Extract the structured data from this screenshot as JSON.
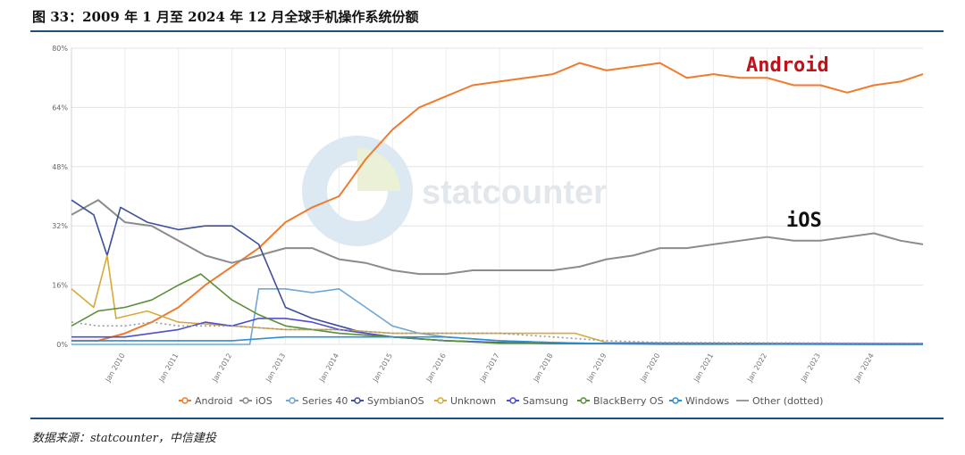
{
  "header": {
    "title": "图 33：2009 年 1 月至 2024 年 12 月全球手机操作系统份额"
  },
  "footer": {
    "source": "数据来源：statcounter，中信建投"
  },
  "watermark": "statcounter",
  "colors": {
    "rule": "#1f4e79",
    "Android": "#f07a2e",
    "iOS": "#8c8c8c",
    "Series 40": "#6fa8d6",
    "SymbianOS": "#3b4f9a",
    "Unknown": "#d9a93a",
    "Samsung": "#4d4fd0",
    "BlackBerry OS": "#5c8f3a",
    "Windows": "#2f8fd1",
    "Other (dotted)": "#9a9a9a",
    "annotation_android": "#c0121b",
    "annotation_ios": "#111111"
  },
  "chart_data": {
    "type": "line",
    "title": "",
    "xlabel": "",
    "ylabel": "",
    "ylim": [
      0,
      80
    ],
    "y_ticks": [
      "0%",
      "16%",
      "32%",
      "48%",
      "64%",
      "80%"
    ],
    "x_ticks": [
      "Jan 2010",
      "Jan 2011",
      "Jan 2012",
      "Jan 2013",
      "Jan 2014",
      "Jan 2015",
      "Jan 2016",
      "Jan 2017",
      "Jan 2018",
      "Jan 2019",
      "Jan 2020",
      "Jan 2021",
      "Jan 2022",
      "Jan 2023",
      "Jan 2024"
    ],
    "x_start": "2009-01",
    "x_end": "2024-12",
    "legend": [
      "Android",
      "iOS",
      "Series 40",
      "SymbianOS",
      "Unknown",
      "Samsung",
      "BlackBerry OS",
      "Windows",
      "Other (dotted)"
    ],
    "legend_position": "bottom",
    "grid": true,
    "annotations": [
      {
        "text": "Android",
        "series": "Android"
      },
      {
        "text": "iOS",
        "series": "iOS"
      }
    ],
    "series": [
      {
        "name": "Android",
        "x": [
          "2009-01",
          "2009-07",
          "2010-01",
          "2010-07",
          "2011-01",
          "2011-07",
          "2012-01",
          "2012-07",
          "2013-01",
          "2013-07",
          "2014-01",
          "2014-07",
          "2015-01",
          "2015-07",
          "2016-01",
          "2016-07",
          "2017-01",
          "2017-07",
          "2018-01",
          "2018-07",
          "2019-01",
          "2019-07",
          "2020-01",
          "2020-07",
          "2021-01",
          "2021-07",
          "2022-01",
          "2022-07",
          "2023-01",
          "2023-07",
          "2024-01",
          "2024-07",
          "2024-12"
        ],
        "values": [
          1,
          1,
          3,
          6,
          10,
          16,
          21,
          26,
          33,
          37,
          40,
          50,
          58,
          64,
          67,
          70,
          71,
          72,
          73,
          76,
          74,
          75,
          76,
          72,
          73,
          72,
          72,
          70,
          70,
          68,
          70,
          71,
          73
        ]
      },
      {
        "name": "iOS",
        "x": [
          "2009-01",
          "2009-07",
          "2010-01",
          "2010-07",
          "2011-01",
          "2011-07",
          "2012-01",
          "2012-07",
          "2013-01",
          "2013-07",
          "2014-01",
          "2014-07",
          "2015-01",
          "2015-07",
          "2016-01",
          "2016-07",
          "2017-01",
          "2017-07",
          "2018-01",
          "2018-07",
          "2019-01",
          "2019-07",
          "2020-01",
          "2020-07",
          "2021-01",
          "2021-07",
          "2022-01",
          "2022-07",
          "2023-01",
          "2023-07",
          "2024-01",
          "2024-07",
          "2024-12"
        ],
        "values": [
          35,
          39,
          33,
          32,
          28,
          24,
          22,
          24,
          26,
          26,
          23,
          22,
          20,
          19,
          19,
          20,
          20,
          20,
          20,
          21,
          23,
          24,
          26,
          26,
          27,
          28,
          29,
          28,
          28,
          29,
          30,
          28,
          27
        ]
      },
      {
        "name": "Series 40",
        "x": [
          "2009-01",
          "2011-01",
          "2012-01",
          "2012-05",
          "2012-07",
          "2013-01",
          "2013-07",
          "2014-01",
          "2014-07",
          "2015-01",
          "2015-07",
          "2016-01",
          "2016-07",
          "2017-01",
          "2018-01",
          "2019-01",
          "2020-01",
          "2024-12"
        ],
        "values": [
          0,
          0,
          0,
          0,
          15,
          15,
          14,
          15,
          10,
          5,
          3,
          2,
          1.5,
          1,
          0.5,
          0.2,
          0,
          0
        ]
      },
      {
        "name": "SymbianOS",
        "x": [
          "2009-01",
          "2009-06",
          "2009-09",
          "2009-12",
          "2010-06",
          "2011-01",
          "2011-07",
          "2012-01",
          "2012-07",
          "2013-01",
          "2013-07",
          "2014-01",
          "2014-07",
          "2015-01",
          "2016-01",
          "2017-01",
          "2018-01",
          "2024-12"
        ],
        "values": [
          39,
          35,
          24,
          37,
          33,
          31,
          32,
          32,
          27,
          10,
          7,
          5,
          3,
          2,
          1,
          0.5,
          0.2,
          0
        ]
      },
      {
        "name": "Unknown",
        "x": [
          "2009-01",
          "2009-06",
          "2009-09",
          "2009-11",
          "2010-06",
          "2011-01",
          "2012-01",
          "2013-01",
          "2014-01",
          "2015-01",
          "2016-01",
          "2017-01",
          "2018-01",
          "2018-06",
          "2019-01",
          "2024-12"
        ],
        "values": [
          15,
          10,
          24,
          7,
          9,
          6,
          5,
          4,
          4,
          3,
          3,
          3,
          3,
          3,
          0.5,
          0
        ]
      },
      {
        "name": "Samsung",
        "x": [
          "2009-01",
          "2009-07",
          "2010-01",
          "2011-01",
          "2011-07",
          "2012-01",
          "2012-07",
          "2013-01",
          "2013-07",
          "2014-01",
          "2014-07",
          "2015-01",
          "2016-01",
          "2017-01",
          "2018-01",
          "2024-12"
        ],
        "values": [
          2,
          2,
          2,
          4,
          6,
          5,
          7,
          7,
          6,
          4,
          3,
          2,
          1,
          0.5,
          0.3,
          0.2
        ]
      },
      {
        "name": "BlackBerry OS",
        "x": [
          "2009-01",
          "2009-07",
          "2010-01",
          "2010-07",
          "2011-01",
          "2011-06",
          "2011-10",
          "2012-01",
          "2012-07",
          "2013-01",
          "2013-07",
          "2014-01",
          "2015-01",
          "2016-01",
          "2017-01",
          "2024-12"
        ],
        "values": [
          5,
          9,
          10,
          12,
          16,
          19,
          15,
          12,
          8,
          5,
          4,
          3,
          2,
          1,
          0.3,
          0
        ]
      },
      {
        "name": "Windows",
        "x": [
          "2009-01",
          "2010-01",
          "2011-01",
          "2012-01",
          "2013-01",
          "2014-01",
          "2015-01",
          "2016-01",
          "2017-01",
          "2018-01",
          "2019-01",
          "2024-12"
        ],
        "values": [
          1,
          1,
          1,
          1,
          2,
          2,
          2,
          2,
          1,
          0.5,
          0.2,
          0
        ]
      },
      {
        "name": "Other (dotted)",
        "x": [
          "2009-01",
          "2009-07",
          "2010-01",
          "2010-07",
          "2011-01",
          "2012-01",
          "2013-01",
          "2014-01",
          "2015-01",
          "2016-01",
          "2017-01",
          "2018-01",
          "2019-01",
          "2020-01",
          "2024-12"
        ],
        "values": [
          6,
          5,
          5,
          6,
          5,
          5,
          4,
          4,
          3,
          3,
          3,
          2,
          1,
          0.5,
          0.3
        ]
      }
    ]
  }
}
